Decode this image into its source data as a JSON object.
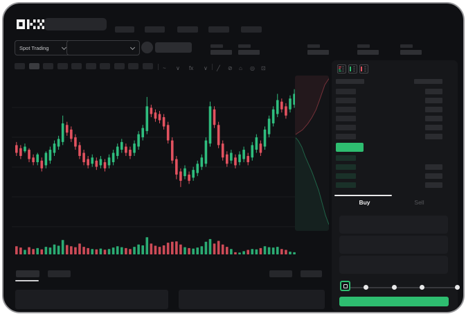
{
  "theme": {
    "canvas_bg": "#ffffff",
    "window_bg": "#0f1013",
    "window_border": "#98989b",
    "panel_bg": "#16171a",
    "placeholder": "#26272b",
    "placeholder_bright": "#2f3034",
    "green": "#2ebd70",
    "red": "#e2525f",
    "text": "#c6c7ca",
    "text_dim": "#56575b"
  },
  "navbar": {
    "logo_text": "OKX",
    "nav_placeholder_count": 5,
    "search": {
      "placeholder": ""
    }
  },
  "market_bar": {
    "market_type_label": "Spot Trading",
    "pair_select_value": "",
    "stat_block_count": 5
  },
  "chart_toolbar": {
    "interval_chip_count": 10,
    "active_chip_index": 1,
    "left_icons": [
      {
        "name": "chart-style-icon",
        "glyph": "~"
      },
      {
        "name": "chevron-down-icon",
        "glyph": "∨"
      },
      {
        "name": "indicators-icon",
        "glyph": "fx"
      },
      {
        "name": "chevron-down-icon",
        "glyph": "∨"
      }
    ],
    "right_icons": [
      {
        "name": "trendline-tool-icon",
        "glyph": "╱"
      },
      {
        "name": "eraser-tool-icon",
        "glyph": "⊘"
      },
      {
        "name": "camera-icon",
        "glyph": "⌂"
      },
      {
        "name": "settings-icon",
        "glyph": "◎"
      },
      {
        "name": "fullscreen-icon",
        "glyph": "⊡"
      }
    ]
  },
  "order_book": {
    "layout_icons": [
      {
        "name": "book-both-icon",
        "top_color": "#e2525f",
        "bottom_color": "#2ebd70"
      },
      {
        "name": "book-bids-icon",
        "bar_color": "#2ebd70"
      },
      {
        "name": "book-asks-icon",
        "bar_color": "#e2525f"
      }
    ],
    "ask_row_count": 6,
    "bid_row_count": 4,
    "bid_rows_with_right_bar": 3,
    "last_price_highlight_color": "#2ebd70"
  },
  "trade_panel": {
    "tabs": [
      {
        "label": "Buy",
        "active": true
      },
      {
        "label": "Sell",
        "active": false
      }
    ],
    "input_count": 3,
    "slider": {
      "stop_count": 5,
      "active_stop_index": 0,
      "handle_border_color": "#2ebd70"
    },
    "submit_button_color": "#2ebd70"
  },
  "bottom_panel": {
    "tab_count": 2,
    "active_tab_index": 0,
    "right_chip_count": 2,
    "table_placeholder_count": 2
  },
  "chart_data": [
    {
      "type": "candlestick",
      "title": "",
      "axes_visible": false,
      "grid": true,
      "ylim": [
        0,
        100
      ],
      "up_color": "#2fbd7e",
      "down_color": "#e2525f",
      "candles": [
        [
          "r",
          52,
          57,
          50,
          59
        ],
        [
          "r",
          50,
          55,
          48,
          57
        ],
        [
          "g",
          53,
          56,
          52,
          58
        ],
        [
          "r",
          48,
          54,
          46,
          55
        ],
        [
          "r",
          46,
          49,
          44,
          51
        ],
        [
          "g",
          46,
          51,
          44,
          52
        ],
        [
          "r",
          42,
          47,
          40,
          49
        ],
        [
          "g",
          44,
          52,
          42,
          53
        ],
        [
          "g",
          47,
          54,
          45,
          56
        ],
        [
          "g",
          52,
          58,
          50,
          60
        ],
        [
          "g",
          56,
          61,
          54,
          63
        ],
        [
          "g",
          59,
          71,
          57,
          76
        ],
        [
          "r",
          65,
          70,
          63,
          72
        ],
        [
          "r",
          61,
          67,
          59,
          69
        ],
        [
          "r",
          56,
          62,
          54,
          64
        ],
        [
          "r",
          50,
          57,
          48,
          59
        ],
        [
          "r",
          46,
          52,
          44,
          54
        ],
        [
          "r",
          44,
          48,
          42,
          50
        ],
        [
          "g",
          45,
          49,
          43,
          51
        ],
        [
          "r",
          43,
          47,
          41,
          49
        ],
        [
          "g",
          44,
          48,
          42,
          50
        ],
        [
          "r",
          42,
          46,
          40,
          48
        ],
        [
          "g",
          44,
          49,
          42,
          51
        ],
        [
          "g",
          46,
          52,
          44,
          54
        ],
        [
          "g",
          50,
          56,
          48,
          58
        ],
        [
          "g",
          54,
          59,
          52,
          61
        ],
        [
          "r",
          52,
          56,
          50,
          58
        ],
        [
          "r",
          50,
          54,
          48,
          56
        ],
        [
          "g",
          52,
          58,
          50,
          60
        ],
        [
          "g",
          56,
          64,
          54,
          66
        ],
        [
          "g",
          62,
          68,
          60,
          70
        ],
        [
          "g",
          66,
          82,
          64,
          88
        ],
        [
          "r",
          77,
          81,
          75,
          83
        ],
        [
          "r",
          74,
          78,
          72,
          80
        ],
        [
          "r",
          73,
          77,
          71,
          79
        ],
        [
          "r",
          69,
          75,
          67,
          77
        ],
        [
          "r",
          60,
          70,
          58,
          72
        ],
        [
          "r",
          47,
          60,
          45,
          62
        ],
        [
          "r",
          38,
          48,
          35,
          50
        ],
        [
          "r",
          34,
          40,
          30,
          42
        ],
        [
          "g",
          37,
          42,
          35,
          44
        ],
        [
          "r",
          34,
          38,
          32,
          40
        ],
        [
          "g",
          36,
          41,
          34,
          43
        ],
        [
          "g",
          39,
          45,
          37,
          47
        ],
        [
          "g",
          43,
          49,
          41,
          51
        ],
        [
          "g",
          45,
          60,
          43,
          62
        ],
        [
          "g",
          58,
          82,
          56,
          85
        ],
        [
          "r",
          70,
          80,
          68,
          82
        ],
        [
          "r",
          57,
          70,
          55,
          72
        ],
        [
          "r",
          49,
          58,
          47,
          60
        ],
        [
          "r",
          45,
          51,
          43,
          53
        ],
        [
          "g",
          47,
          52,
          45,
          54
        ],
        [
          "r",
          44,
          49,
          42,
          51
        ],
        [
          "g",
          46,
          51,
          44,
          53
        ],
        [
          "g",
          48,
          54,
          46,
          56
        ],
        [
          "r",
          46,
          50,
          44,
          52
        ],
        [
          "g",
          49,
          57,
          47,
          59
        ],
        [
          "g",
          54,
          62,
          52,
          64
        ],
        [
          "r",
          52,
          58,
          50,
          60
        ],
        [
          "g",
          56,
          67,
          54,
          69
        ],
        [
          "g",
          64,
          74,
          62,
          76
        ],
        [
          "g",
          71,
          80,
          69,
          82
        ],
        [
          "g",
          77,
          86,
          75,
          90
        ],
        [
          "r",
          80,
          85,
          78,
          87
        ],
        [
          "r",
          76,
          82,
          74,
          84
        ],
        [
          "g",
          80,
          87,
          78,
          89
        ],
        [
          "g",
          83,
          90,
          81,
          93
        ]
      ],
      "volume": {
        "max": 100,
        "values": [
          45,
          38,
          25,
          40,
          30,
          35,
          28,
          42,
          38,
          55,
          48,
          80,
          52,
          45,
          40,
          60,
          42,
          35,
          30,
          28,
          32,
          26,
          30,
          38,
          45,
          40,
          35,
          30,
          42,
          55,
          50,
          95,
          60,
          48,
          42,
          50,
          65,
          70,
          72,
          55,
          40,
          35,
          32,
          38,
          45,
          70,
          85,
          60,
          75,
          55,
          42,
          30,
          12,
          10,
          18,
          25,
          30,
          28,
          35,
          45,
          40,
          38,
          42,
          30,
          25,
          15,
          12
        ]
      }
    },
    {
      "type": "area",
      "name": "depth",
      "orientation": "vertical",
      "series": [
        {
          "name": "asks",
          "color": "#e2525f",
          "line": [
            [
              100,
              2
            ],
            [
              88,
              6
            ],
            [
              80,
              11
            ],
            [
              72,
              16
            ],
            [
              62,
              22
            ],
            [
              50,
              27
            ],
            [
              38,
              31
            ],
            [
              22,
              35
            ],
            [
              8,
              37
            ],
            [
              2,
              38
            ]
          ]
        },
        {
          "name": "bids",
          "color": "#2fbd7e",
          "line": [
            [
              2,
              40
            ],
            [
              10,
              42
            ],
            [
              20,
              46
            ],
            [
              30,
              52
            ],
            [
              40,
              57
            ],
            [
              50,
              62
            ],
            [
              60,
              68
            ],
            [
              70,
              74
            ],
            [
              80,
              82
            ],
            [
              90,
              90
            ],
            [
              100,
              96
            ]
          ]
        }
      ]
    }
  ]
}
